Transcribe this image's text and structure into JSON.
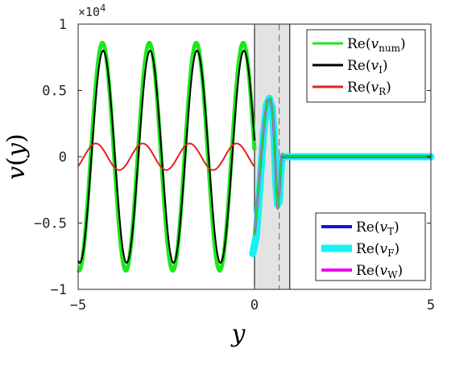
{
  "chart_data": {
    "type": "line",
    "xlabel_base": "y",
    "ylabel_base": "v",
    "ylabel_arg": "y",
    "xlim": [
      -5,
      5
    ],
    "ylim": [
      -10000,
      10000
    ],
    "y_exponent_base": "×10",
    "y_exponent_power": "4",
    "x_ticks": [
      {
        "value": -5,
        "label": "−5"
      },
      {
        "value": 0,
        "label": "0"
      },
      {
        "value": 5,
        "label": "5"
      }
    ],
    "y_ticks": [
      {
        "value": 10000,
        "label": "1"
      },
      {
        "value": 5000,
        "label": "0.5"
      },
      {
        "value": 0,
        "label": "0"
      },
      {
        "value": -5000,
        "label": "−0.5"
      },
      {
        "value": -10000,
        "label": "−1"
      }
    ],
    "shaded_region": {
      "x0": 0,
      "x1": 1,
      "color": "#e3e3e3"
    },
    "dashed_line_x": 0.7,
    "incident_wave": {
      "amplitude": 8000,
      "period": 1.33,
      "x_peak": -0.3
    },
    "reflected_wave": {
      "amplitude": 1000,
      "period": 1.33,
      "x_peak": -4.5
    },
    "colors": {
      "num": "#1ee61e",
      "I": "#000000",
      "R": "#e61e1e",
      "T": "#0a14e6",
      "F": "#19f0f0",
      "W": "#f00af0"
    },
    "legend_top": [
      {
        "key": "num",
        "base": "Re(",
        "var": "v",
        "sub": "num",
        "close": ")"
      },
      {
        "key": "I",
        "base": "Re(",
        "var": "v",
        "sub": "I",
        "close": ")"
      },
      {
        "key": "R",
        "base": "Re(",
        "var": "v",
        "sub": "R",
        "close": ")"
      }
    ],
    "legend_bottom": [
      {
        "key": "T",
        "base": "Re(",
        "var": "v",
        "sub": "T",
        "close": ")"
      },
      {
        "key": "F",
        "base": "Re(",
        "var": "v",
        "sub": "F",
        "close": ")"
      },
      {
        "key": "W",
        "base": "Re(",
        "var": "v",
        "sub": "W",
        "close": ")"
      }
    ]
  }
}
